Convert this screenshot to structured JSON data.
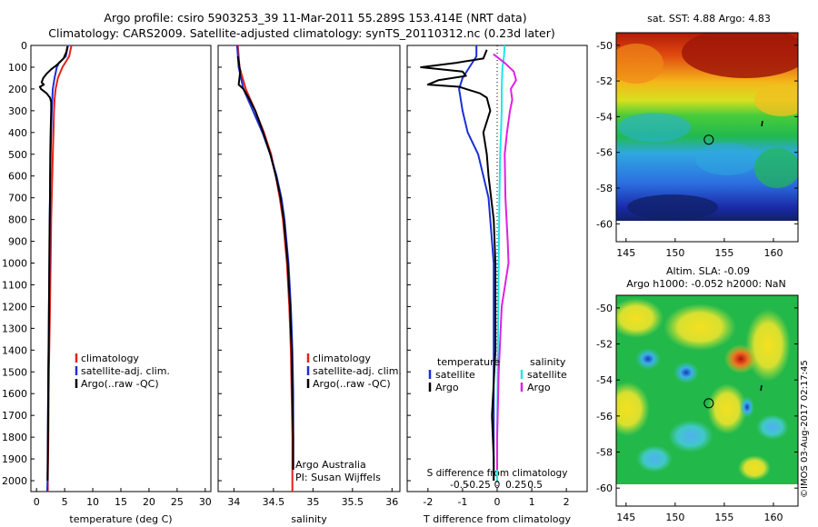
{
  "header": {
    "line1": "Argo profile: csiro 5903253_39 11-Mar-2011 55.289S 153.414E (NRT data)",
    "line2": "Climatology: CARS2009. Satellite-adjusted climatology: synTS_20110312.nc (0.23d later)"
  },
  "colors": {
    "climatology": "#e8201a",
    "satellite": "#1a2fd6",
    "argo": "#000000",
    "sat_salinity": "#22e6e6",
    "argo_salinity": "#e020e0"
  },
  "chart_data": [
    {
      "type": "line",
      "panel": "temperature",
      "xlabel": "temperature (deg C)",
      "ylabel": "",
      "xlim": [
        -1,
        31
      ],
      "ylim": [
        2050,
        0
      ],
      "xticks": [
        0,
        5,
        10,
        15,
        20,
        25,
        30
      ],
      "yticks": [
        0,
        100,
        200,
        300,
        400,
        500,
        600,
        700,
        800,
        900,
        1000,
        1100,
        1200,
        1300,
        1400,
        1500,
        1600,
        1700,
        1800,
        1900,
        2000
      ],
      "legend": [
        "climatology",
        "satellite-adj. clim.",
        "Argo(..raw -QC)"
      ],
      "series": [
        {
          "name": "climatology",
          "color_key": "climatology",
          "depth": [
            0,
            50,
            100,
            150,
            200,
            250,
            300,
            400,
            500,
            600,
            700,
            800,
            1000,
            1200,
            1500,
            1800,
            2000,
            2050
          ],
          "values": [
            6.2,
            5.8,
            4.6,
            3.8,
            3.4,
            3.2,
            3.1,
            3.0,
            2.9,
            2.8,
            2.7,
            2.6,
            2.5,
            2.4,
            2.2,
            2.1,
            2.0,
            2.0
          ]
        },
        {
          "name": "satellite-adj. clim.",
          "color_key": "satellite",
          "depth": [
            0,
            50,
            80,
            100,
            150,
            200,
            250,
            300,
            400,
            500,
            600,
            700,
            800,
            1000,
            1200,
            1500,
            1800,
            2000,
            2050
          ],
          "values": [
            5.6,
            5.2,
            4.0,
            3.6,
            3.2,
            2.9,
            2.8,
            2.7,
            2.6,
            2.5,
            2.45,
            2.4,
            2.35,
            2.3,
            2.2,
            2.1,
            2.0,
            1.95,
            1.9
          ]
        },
        {
          "name": "Argo(..raw -QC)",
          "color_key": "argo",
          "depth": [
            5,
            30,
            60,
            90,
            110,
            130,
            150,
            170,
            180,
            190,
            200,
            220,
            240,
            260,
            300,
            350,
            400,
            500,
            700,
            900,
            1100,
            1300,
            1500,
            1700,
            1900,
            2000
          ],
          "values": [
            5.5,
            5.3,
            4.8,
            3.6,
            2.6,
            1.8,
            1.2,
            0.9,
            1.3,
            0.6,
            0.8,
            1.8,
            2.4,
            2.6,
            2.6,
            2.55,
            2.5,
            2.45,
            2.4,
            2.3,
            2.25,
            2.2,
            2.1,
            2.05,
            2.0,
            1.95
          ]
        }
      ]
    },
    {
      "type": "line",
      "panel": "salinity",
      "xlabel": "salinity",
      "xlim": [
        33.8,
        36.1
      ],
      "ylim": [
        2050,
        0
      ],
      "xticks": [
        34,
        34.5,
        35,
        35.5,
        36
      ],
      "legend": [
        "climatology",
        "satellite-adj. clim.",
        "Argo(..raw -QC)"
      ],
      "series": [
        {
          "name": "climatology",
          "color_key": "climatology",
          "depth": [
            0,
            100,
            200,
            300,
            400,
            500,
            600,
            700,
            800,
            1000,
            1200,
            1400,
            1600,
            1800,
            2000,
            2050
          ],
          "values": [
            34.05,
            34.07,
            34.15,
            34.27,
            34.38,
            34.47,
            34.53,
            34.58,
            34.62,
            34.67,
            34.7,
            34.72,
            34.73,
            34.74,
            34.74,
            34.74
          ]
        },
        {
          "name": "satellite-adj. clim.",
          "color_key": "satellite",
          "depth": [
            0,
            100,
            200,
            300,
            400,
            500,
            600,
            700,
            800,
            1000,
            1200,
            1400,
            1600,
            1800,
            1950
          ],
          "values": [
            34.04,
            34.06,
            34.12,
            34.24,
            34.36,
            34.46,
            34.54,
            34.6,
            34.64,
            34.69,
            34.72,
            34.74,
            34.75,
            34.75,
            34.75
          ]
        },
        {
          "name": "Argo(..raw -QC)",
          "color_key": "argo",
          "depth": [
            50,
            120,
            180,
            200,
            250,
            300,
            400,
            500,
            600,
            700,
            800,
            1000,
            1200,
            1400,
            1600,
            1800,
            1950
          ],
          "values": [
            34.05,
            34.08,
            34.06,
            34.12,
            34.2,
            34.27,
            34.37,
            34.46,
            34.53,
            34.59,
            34.63,
            34.68,
            34.71,
            34.73,
            34.74,
            34.75,
            34.75
          ]
        }
      ],
      "annotations": [
        "Argo Australia",
        "PI: Susan Wijffels"
      ]
    },
    {
      "type": "line",
      "panel": "difference",
      "xlabel": "T difference from climatology",
      "xlabel_top": "S difference from climatology",
      "xlim": [
        -2.6,
        2.6
      ],
      "ylim": [
        2050,
        0
      ],
      "xticks": [
        -2,
        -1,
        0,
        1,
        2
      ],
      "xticks_top": [
        -0.5,
        -0.25,
        0,
        0.25,
        0.5
      ],
      "legend_temperature_title": "temperature",
      "legend_salinity_title": "salinity",
      "legend": [
        "satellite",
        "Argo",
        "satellite",
        "Argo"
      ],
      "series": [
        {
          "name": "satellite",
          "group": "temperature",
          "color_key": "satellite",
          "depth": [
            0,
            50,
            100,
            150,
            200,
            300,
            400,
            500,
            600,
            700,
            800,
            900,
            1000,
            1200,
            1500,
            1800,
            2000
          ],
          "values": [
            -0.6,
            -0.6,
            -0.8,
            -1.0,
            -1.1,
            -1.0,
            -0.85,
            -0.55,
            -0.4,
            -0.25,
            -0.2,
            -0.15,
            -0.1,
            -0.1,
            -0.1,
            -0.1,
            -0.1
          ]
        },
        {
          "name": "Argo",
          "group": "temperature",
          "color_key": "argo",
          "depth": [
            20,
            60,
            80,
            100,
            120,
            140,
            160,
            180,
            190,
            200,
            220,
            240,
            300,
            400,
            500,
            600,
            800,
            1000,
            1400,
            1700,
            1900,
            2000
          ],
          "values": [
            -0.3,
            -0.4,
            -1.2,
            -2.2,
            -1.0,
            -0.9,
            -1.7,
            -2.0,
            -1.1,
            -0.9,
            -0.5,
            -0.3,
            -0.2,
            -0.4,
            -0.3,
            -0.25,
            -0.1,
            -0.05,
            -0.05,
            -0.15,
            -0.1,
            -0.1
          ]
        },
        {
          "name": "satellite",
          "group": "salinity",
          "color_key": "sat_salinity",
          "depth": [
            0,
            50,
            100,
            200,
            300,
            400,
            500,
            700,
            1000,
            1400,
            1800,
            2000
          ],
          "values": [
            0.1,
            0.09,
            0.07,
            0.06,
            0.06,
            0.05,
            0.04,
            0.03,
            0.02,
            0.01,
            0.0,
            0.0
          ]
        },
        {
          "name": "Argo",
          "group": "salinity",
          "color_key": "argo_salinity",
          "depth": [
            40,
            80,
            120,
            160,
            200,
            250,
            300,
            400,
            500,
            700,
            900,
            1000,
            1200,
            1500,
            1800,
            1950
          ],
          "values": [
            -0.05,
            0.1,
            0.22,
            0.25,
            0.18,
            0.2,
            0.17,
            0.13,
            0.1,
            0.11,
            0.14,
            0.15,
            0.06,
            0.02,
            0.0,
            0.0
          ]
        }
      ]
    },
    {
      "type": "heatmap",
      "panel": "map-sst",
      "title": "sat. SST: 4.88  Argo: 4.83",
      "xlim": [
        144,
        162.5
      ],
      "ylim": [
        -61,
        -49.3
      ],
      "xticks": [
        145,
        150,
        155,
        160
      ],
      "yticks": [
        -50,
        -52,
        -54,
        -56,
        -58,
        -60
      ],
      "profile_location": [
        153.414,
        -55.289
      ]
    },
    {
      "type": "heatmap",
      "panel": "map-sla",
      "title": "Altim. SLA: -0.09",
      "subtitle": "Argo h1000: -0.052  h2000: NaN",
      "xlim": [
        144,
        162.5
      ],
      "ylim": [
        -61,
        -49.3
      ],
      "xticks": [
        145,
        150,
        155,
        160
      ],
      "yticks": [
        -50,
        -52,
        -54,
        -56,
        -58,
        -60
      ],
      "profile_location": [
        153.414,
        -55.289
      ]
    }
  ],
  "credit": "©IMOS 03-Aug-2017 02:17:45"
}
